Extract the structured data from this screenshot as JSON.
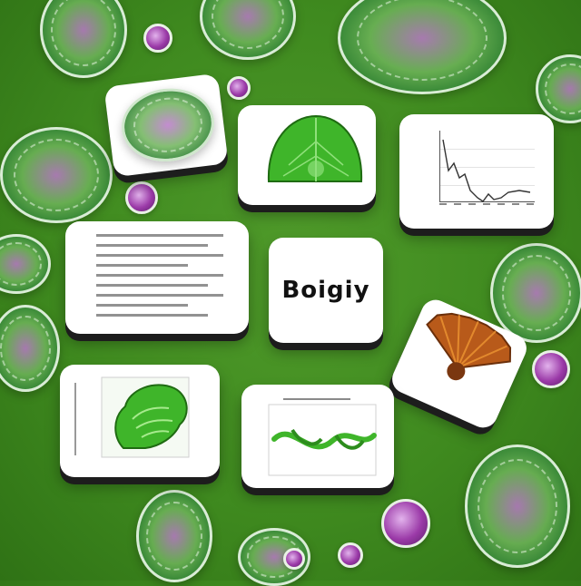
{
  "title_card": {
    "text": "Boigiy"
  },
  "leaf_card": {
    "caption": ""
  },
  "colors": {
    "background_green": "#3f8a1f",
    "card_white": "#ffffff",
    "cell_purple": "#9b3aa8",
    "leaf_green": "#3fb52a",
    "fan_orange": "#b85a1a"
  },
  "icons": {
    "leaf": "leaf-icon",
    "plant_head": "plant-head-icon",
    "vine": "vine-icon",
    "fan_flower": "fan-flower-icon",
    "cell": "cell-icon",
    "microbe": "microbe-icon"
  }
}
